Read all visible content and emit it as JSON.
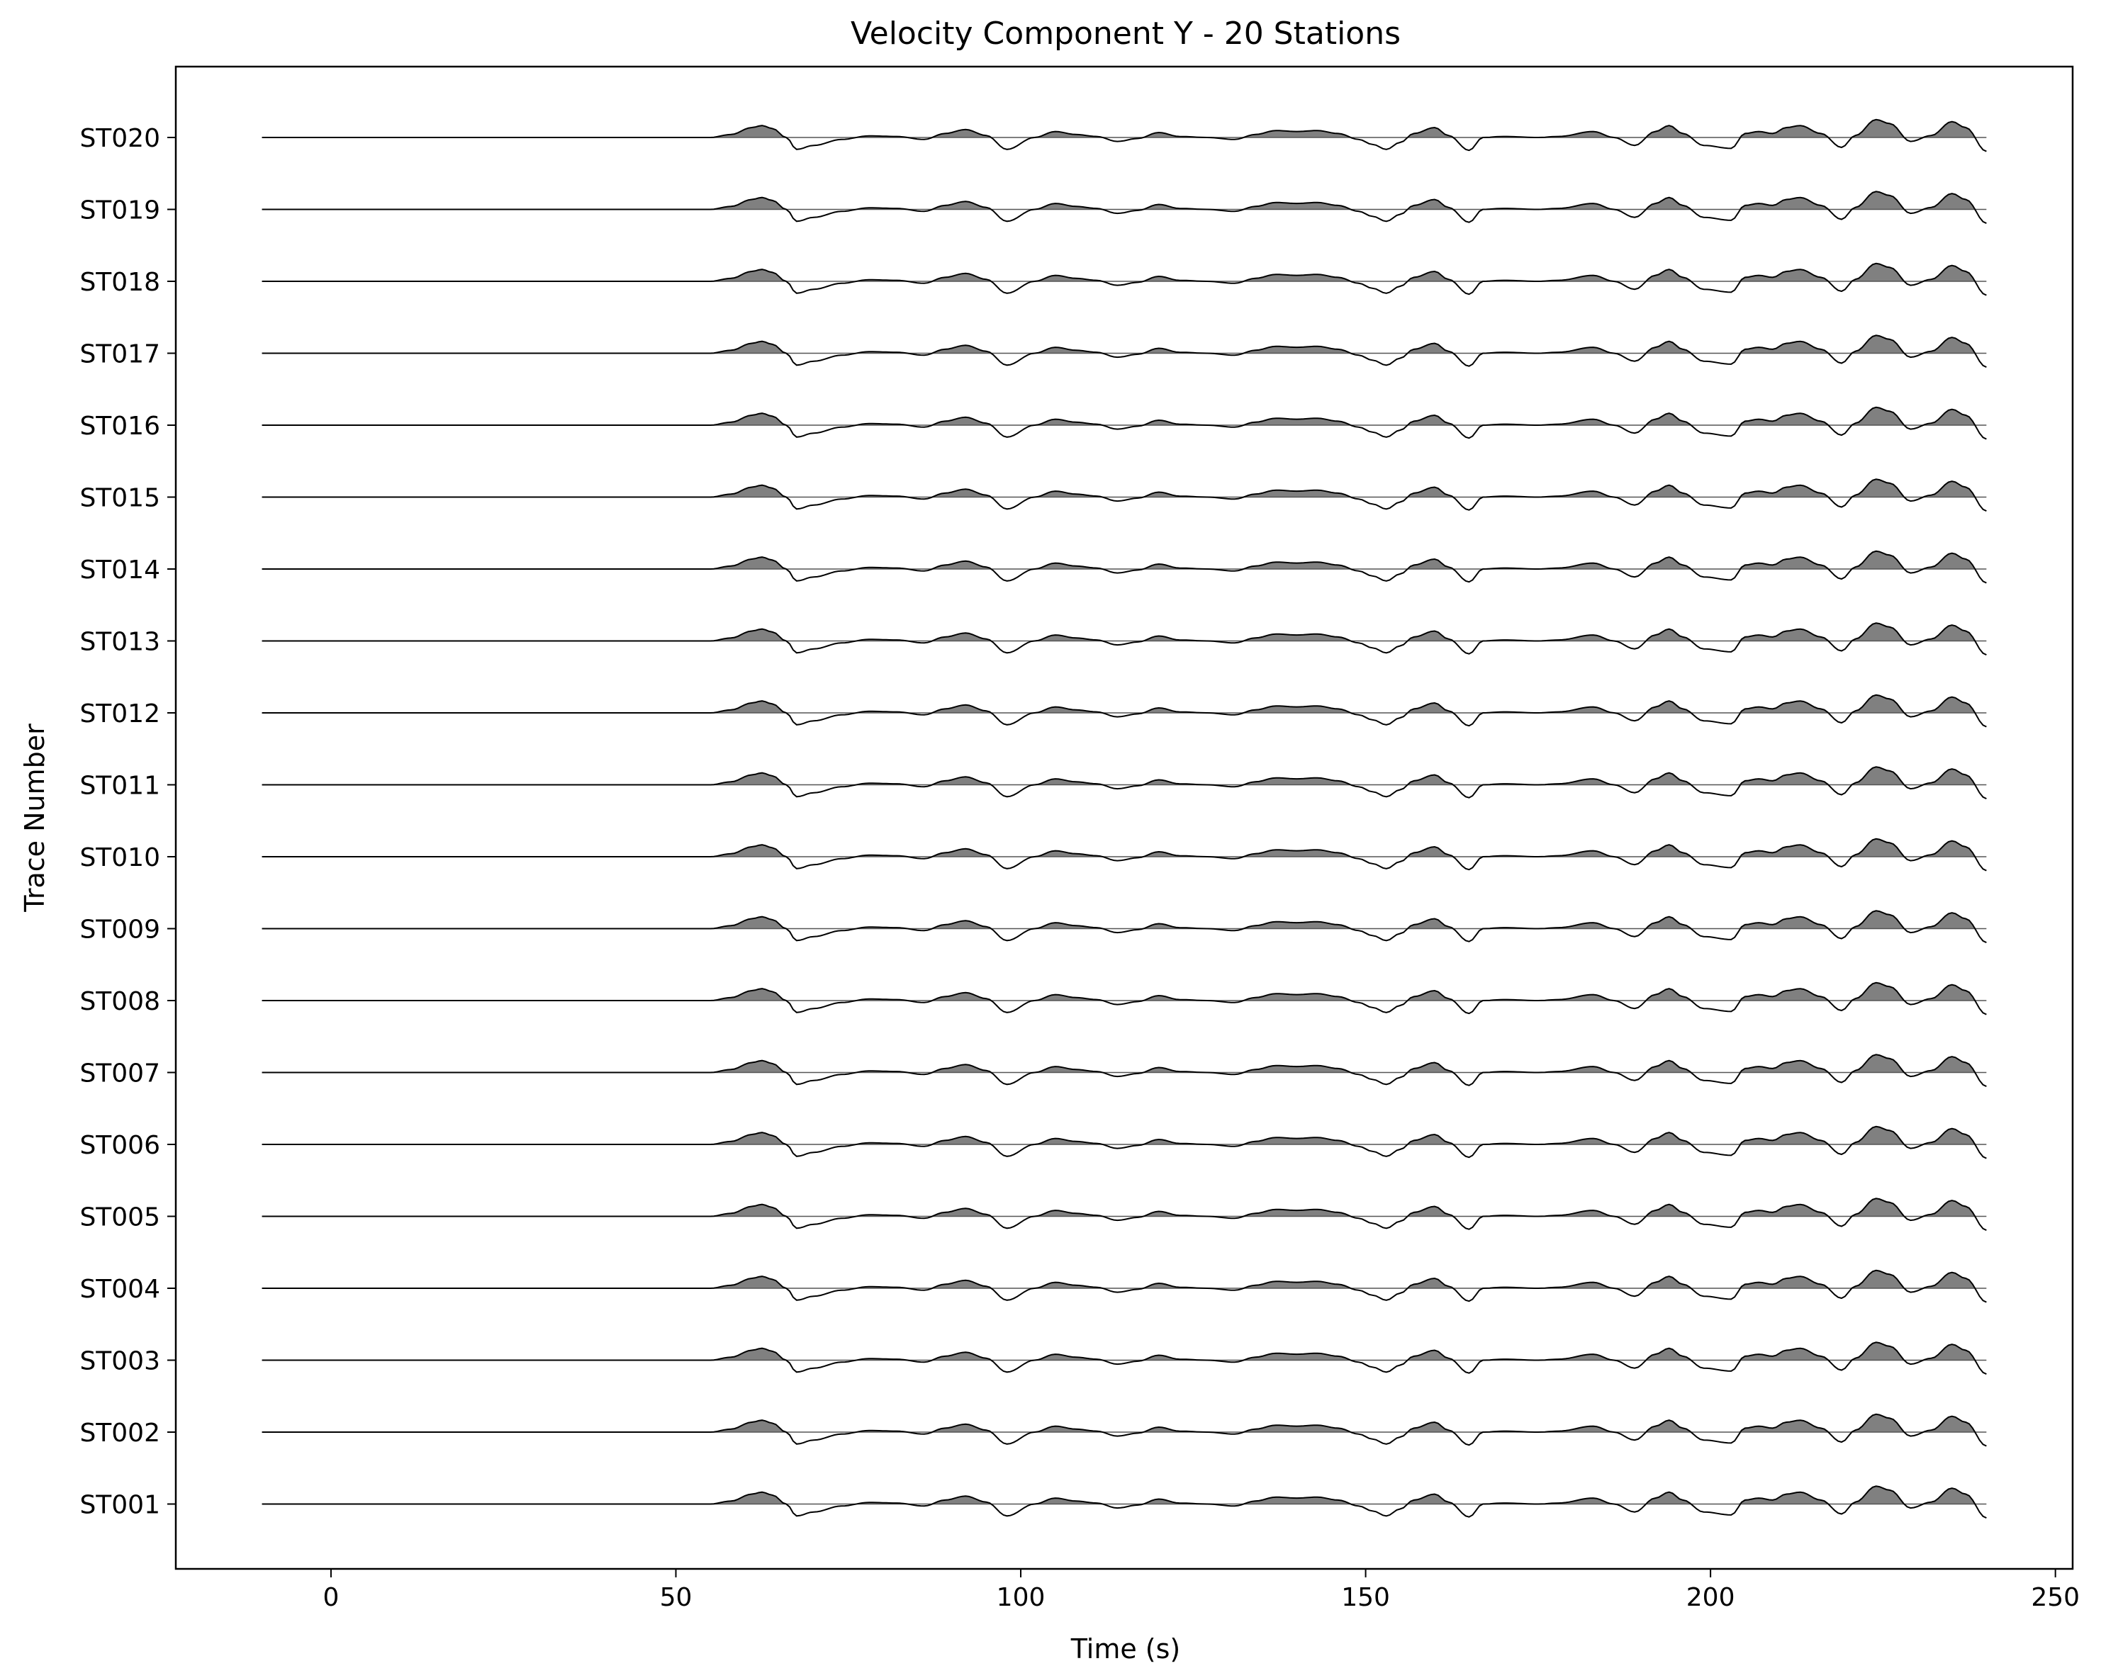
{
  "chart_data": {
    "type": "line",
    "title": "Velocity Component Y - 20 Stations",
    "xlabel": "Time (s)",
    "ylabel": "Trace Number",
    "xlim": [
      -22.5,
      252.5
    ],
    "xticks": [
      0,
      50,
      100,
      150,
      200,
      250
    ],
    "grid": false,
    "legend": "none",
    "fill_positive": true,
    "colors": {
      "line": "#000000",
      "fill": "#808080"
    },
    "stations": [
      "ST001",
      "ST002",
      "ST003",
      "ST004",
      "ST005",
      "ST006",
      "ST007",
      "ST008",
      "ST009",
      "ST010",
      "ST011",
      "ST012",
      "ST013",
      "ST014",
      "ST015",
      "ST016",
      "ST017",
      "ST018",
      "ST019",
      "ST020"
    ],
    "trace_time_range": [
      -10,
      240
    ],
    "waveform": {
      "t": [
        -10,
        55,
        58,
        61,
        62.5,
        64,
        66,
        67.5,
        70,
        74,
        78,
        82,
        86,
        89,
        92,
        95,
        98,
        102,
        105,
        108,
        111,
        114,
        117,
        120,
        123,
        127,
        131,
        134,
        137,
        140,
        143,
        146,
        149,
        151,
        153,
        155,
        157,
        160,
        162,
        165,
        167,
        170,
        175,
        178,
        183,
        186,
        189,
        192,
        194,
        196,
        199,
        203,
        205,
        207,
        209,
        211,
        213,
        216,
        219,
        221,
        224,
        226,
        229,
        232,
        235,
        237,
        240
      ],
      "amp": [
        0,
        0,
        0.15,
        0.5,
        0.6,
        0.45,
        0.0,
        -0.6,
        -0.4,
        -0.1,
        0.08,
        0.05,
        -0.1,
        0.2,
        0.4,
        0.1,
        -0.6,
        0.0,
        0.3,
        0.15,
        0.05,
        -0.2,
        -0.05,
        0.25,
        0.05,
        0.0,
        -0.1,
        0.15,
        0.35,
        0.3,
        0.35,
        0.2,
        -0.1,
        -0.35,
        -0.6,
        -0.25,
        0.2,
        0.5,
        0.1,
        -0.65,
        0.0,
        0.05,
        0.0,
        0.05,
        0.3,
        0.0,
        -0.4,
        0.3,
        0.6,
        0.2,
        -0.4,
        -0.55,
        0.2,
        0.3,
        0.2,
        0.5,
        0.6,
        0.2,
        -0.5,
        0.1,
        0.9,
        0.7,
        -0.2,
        0.1,
        0.8,
        0.5,
        -0.7
      ]
    }
  }
}
